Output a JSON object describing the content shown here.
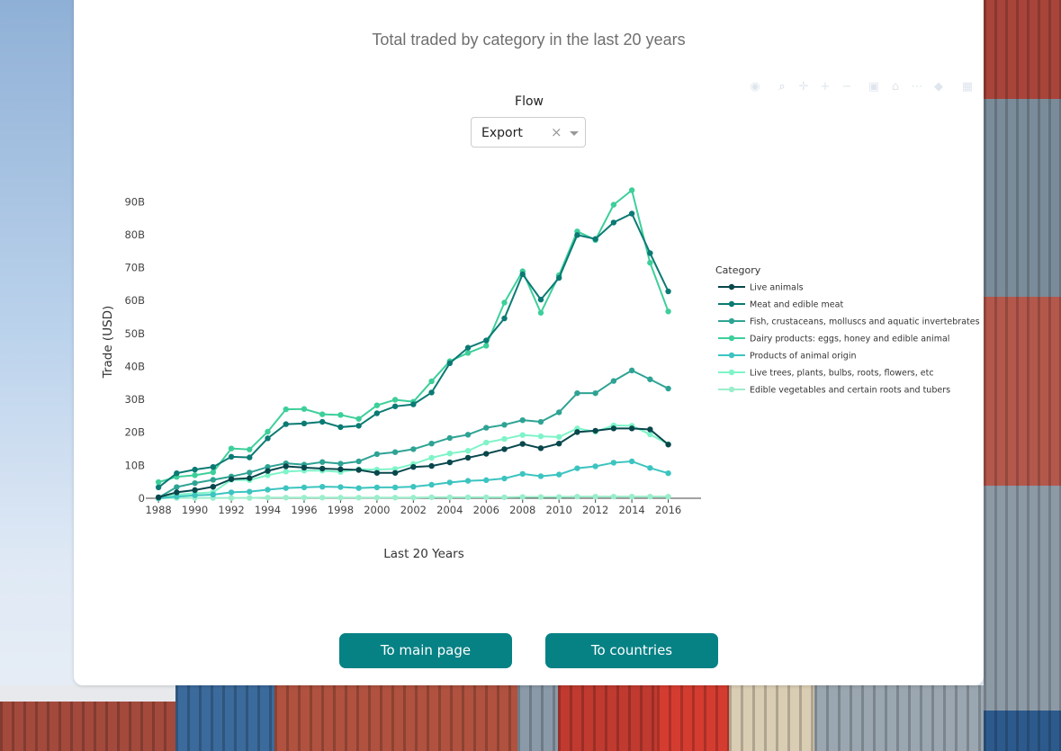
{
  "title": "Total traded by category in the last 20 years",
  "filter": {
    "label": "Flow",
    "selected": "Export",
    "clear_icon": "×"
  },
  "buttons": {
    "main_page": "To main page",
    "countries": "To countries"
  },
  "modebar_icons": [
    "camera-icon",
    "zoom-icon",
    "pan-icon",
    "zoom-in-icon",
    "zoom-out-icon",
    "autoscale-icon",
    "reset-axes-icon",
    "spike-lines-icon",
    "hover-closest-icon",
    "hover-compare-icon",
    "plotly-logo-icon"
  ],
  "chart_data": {
    "type": "line",
    "title": "",
    "xlabel": "Last 20 Years",
    "ylabel": "Trade (USD)",
    "xlim": [
      1987.5,
      2017.8
    ],
    "ylim": [
      0,
      95
    ],
    "yunit": "B",
    "xticks": [
      1988,
      1990,
      1992,
      1994,
      1996,
      1998,
      2000,
      2002,
      2004,
      2006,
      2008,
      2010,
      2012,
      2014,
      2016
    ],
    "yticks": [
      {
        "v": 0,
        "label": "0"
      },
      {
        "v": 10,
        "label": "10B"
      },
      {
        "v": 20,
        "label": "20B"
      },
      {
        "v": 30,
        "label": "30B"
      },
      {
        "v": 40,
        "label": "40B"
      },
      {
        "v": 50,
        "label": "50B"
      },
      {
        "v": 60,
        "label": "60B"
      },
      {
        "v": 70,
        "label": "70B"
      },
      {
        "v": 80,
        "label": "80B"
      },
      {
        "v": 90,
        "label": "90B"
      }
    ],
    "legend_title": "Category",
    "legend_position": "right",
    "x": [
      1988,
      1989,
      1990,
      1991,
      1992,
      1993,
      1994,
      1995,
      1996,
      1997,
      1998,
      1999,
      2000,
      2001,
      2002,
      2003,
      2004,
      2005,
      2006,
      2007,
      2008,
      2009,
      2010,
      2011,
      2012,
      2013,
      2014,
      2015,
      2016
    ],
    "series": [
      {
        "name": "Live animals",
        "color": "#08474c",
        "values": [
          0.3,
          1.8,
          2.5,
          3.5,
          5.8,
          6.1,
          8.3,
          9.7,
          9.3,
          9.0,
          8.8,
          8.6,
          7.7,
          7.7,
          9.5,
          9.8,
          10.9,
          12.3,
          13.5,
          14.9,
          16.5,
          15.2,
          16.6,
          20.1,
          20.5,
          21.2,
          21.2,
          20.9,
          16.3
        ]
      },
      {
        "name": "Meat and edible meat",
        "color": "#0b7a74",
        "values": [
          3.3,
          7.6,
          8.7,
          9.5,
          12.6,
          12.4,
          18.2,
          22.5,
          22.7,
          23.2,
          21.6,
          22.0,
          25.8,
          27.9,
          28.5,
          32.1,
          41.0,
          45.7,
          47.9,
          54.6,
          68.0,
          60.3,
          66.9,
          79.9,
          78.7,
          83.7,
          86.4,
          74.4,
          62.8
        ]
      },
      {
        "name": "Fish, crustaceans, molluscs and aquatic invertebrates",
        "color": "#2ea394",
        "values": [
          0.2,
          3.4,
          4.6,
          5.6,
          6.6,
          7.8,
          9.5,
          10.6,
          10.2,
          11.0,
          10.5,
          11.2,
          13.4,
          14.0,
          14.9,
          16.6,
          18.3,
          19.3,
          21.4,
          22.3,
          23.7,
          23.2,
          26.1,
          31.9,
          31.9,
          35.6,
          38.8,
          36.1,
          33.3
        ]
      },
      {
        "name": "Dairy products: eggs, honey and edible animal",
        "color": "#3dcf9a",
        "values": [
          4.9,
          6.5,
          7.0,
          7.9,
          15.1,
          14.8,
          20.2,
          27.0,
          27.1,
          25.5,
          25.3,
          24.1,
          28.2,
          29.9,
          29.3,
          35.5,
          41.6,
          44.1,
          46.3,
          59.4,
          68.9,
          56.3,
          67.7,
          81.0,
          78.4,
          89.1,
          93.5,
          71.5,
          56.7
        ]
      },
      {
        "name": "Products of animal origin",
        "color": "#3cc4c0",
        "values": [
          0.0,
          0.5,
          0.9,
          1.1,
          1.8,
          2.0,
          2.6,
          3.1,
          3.3,
          3.5,
          3.4,
          3.1,
          3.3,
          3.3,
          3.5,
          4.1,
          4.8,
          5.3,
          5.5,
          6.0,
          7.4,
          6.7,
          7.2,
          9.1,
          9.7,
          10.8,
          11.2,
          9.2,
          7.6
        ]
      },
      {
        "name": "Live trees, plants, bulbs, roots, flowers, etc",
        "color": "#7ef4c8",
        "values": [
          0.0,
          1.1,
          1.5,
          1.8,
          5.6,
          5.5,
          7.0,
          8.1,
          8.4,
          8.4,
          8.0,
          8.8,
          8.7,
          8.9,
          10.4,
          12.3,
          13.6,
          14.4,
          16.9,
          18.0,
          19.2,
          18.8,
          18.6,
          21.2,
          20.2,
          22.1,
          22.0,
          19.4,
          16.4
        ]
      },
      {
        "name": "Edible vegetables and certain roots and tubers",
        "color": "#9beecb",
        "values": [
          0.0,
          0.1,
          0.1,
          0.1,
          0.1,
          0.1,
          0.2,
          0.2,
          0.2,
          0.2,
          0.2,
          0.2,
          0.2,
          0.2,
          0.2,
          0.3,
          0.3,
          0.3,
          0.3,
          0.3,
          0.4,
          0.4,
          0.4,
          0.5,
          0.5,
          0.5,
          0.5,
          0.5,
          0.5
        ]
      }
    ]
  }
}
